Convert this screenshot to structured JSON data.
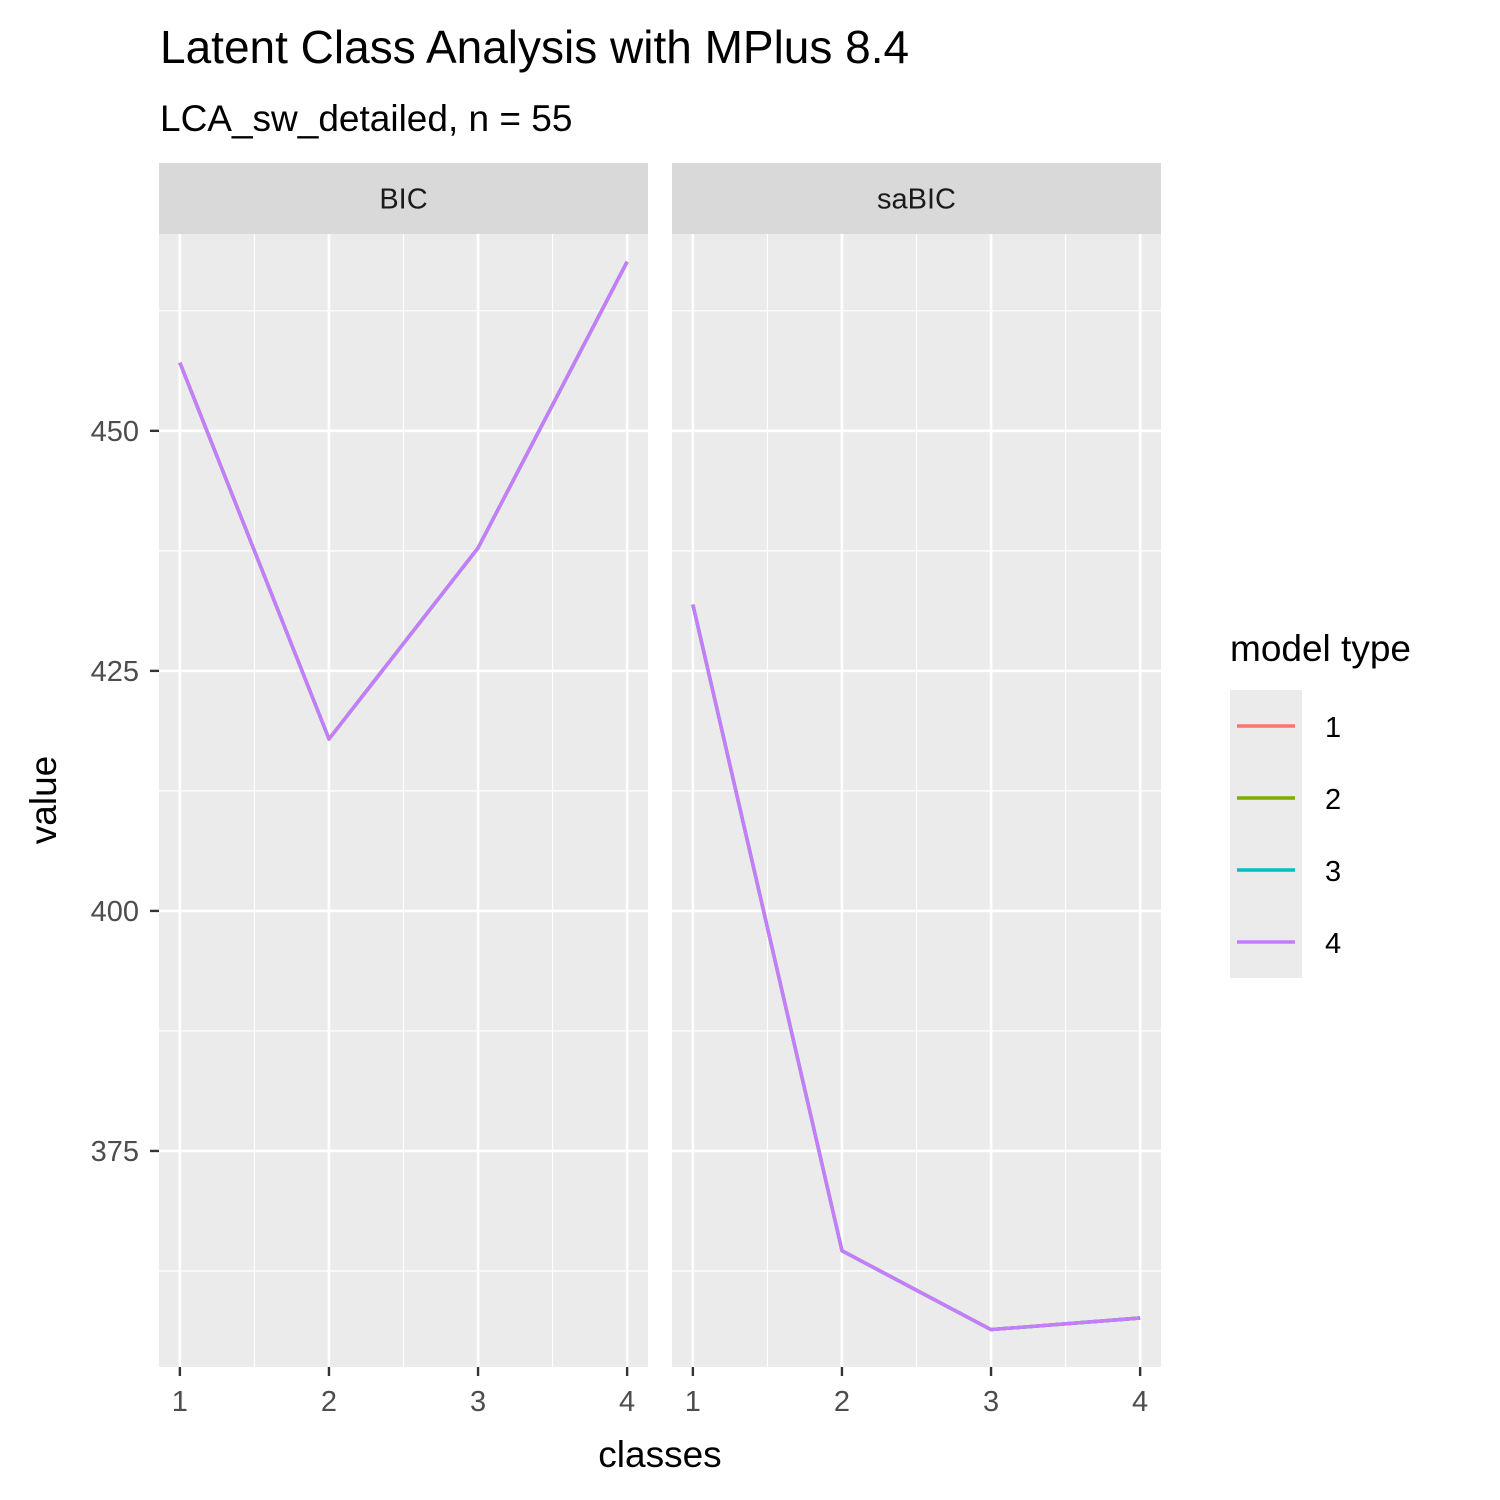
{
  "chart_data": {
    "type": "line",
    "title": "Latent Class Analysis with MPlus 8.4",
    "subtitle": "LCA_sw_detailed, n = 55",
    "xlabel": "classes",
    "ylabel": "value",
    "x": [
      1,
      2,
      3,
      4
    ],
    "xlim": [
      0.86,
      4.14
    ],
    "ylim": [
      352.5,
      470.5
    ],
    "y_ticks": [
      375,
      400,
      425,
      450
    ],
    "grid": true,
    "legend": {
      "title": "model type",
      "position": "right",
      "entries": [
        {
          "label": "1",
          "color": "#F8766D"
        },
        {
          "label": "2",
          "color": "#7CAE00"
        },
        {
          "label": "3",
          "color": "#00BFC4"
        },
        {
          "label": "4",
          "color": "#C77CFF"
        }
      ]
    },
    "panels": [
      {
        "strip": "BIC",
        "series": [
          {
            "name": "1",
            "color": "#F8766D",
            "values": [
              457.1,
              417.9,
              437.8,
              467.6
            ]
          },
          {
            "name": "2",
            "color": "#7CAE00",
            "values": [
              457.1,
              417.9,
              437.8,
              467.6
            ]
          },
          {
            "name": "3",
            "color": "#00BFC4",
            "values": [
              457.1,
              417.9,
              437.8,
              467.6
            ]
          },
          {
            "name": "4",
            "color": "#C77CFF",
            "values": [
              457.1,
              417.9,
              437.8,
              467.6
            ]
          }
        ]
      },
      {
        "strip": "saBIC",
        "series": [
          {
            "name": "1",
            "color": "#F8766D",
            "values": [
              431.9,
              364.6,
              356.4,
              357.6
            ]
          },
          {
            "name": "2",
            "color": "#7CAE00",
            "values": [
              431.9,
              364.6,
              356.4,
              357.6
            ]
          },
          {
            "name": "3",
            "color": "#00BFC4",
            "values": [
              431.9,
              364.6,
              356.4,
              357.6
            ]
          },
          {
            "name": "4",
            "color": "#C77CFF",
            "values": [
              431.9,
              364.6,
              356.4,
              357.6
            ]
          }
        ]
      }
    ]
  }
}
